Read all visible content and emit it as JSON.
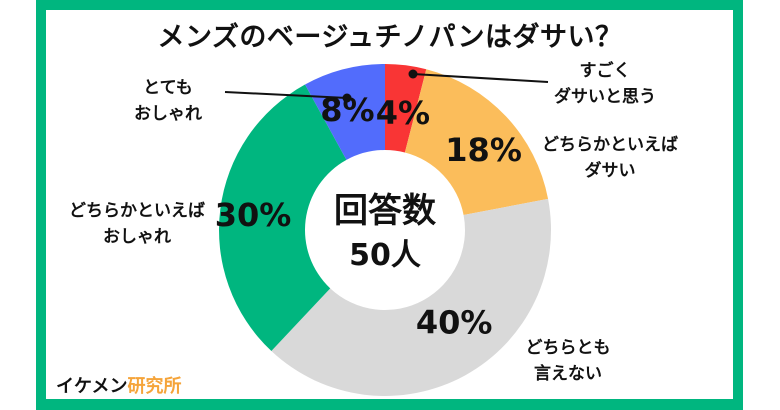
{
  "title": "メンズのベージュチノパンはダサい？",
  "center": {
    "line1": "回答数",
    "line2": "50人"
  },
  "brand": {
    "main": "イケメン",
    "accent": "研究所"
  },
  "colors": {
    "frame": "#00b67f",
    "red": "#f93535",
    "orange": "#fbbd5b",
    "gray": "#d9d9d9",
    "green": "#00b67f",
    "blue": "#526cfc",
    "brand_accent": "#f5a43a"
  },
  "labels": {
    "very_dasai": [
      "すごく",
      "ダサいと思う"
    ],
    "somewhat_dasai": [
      "どちらかといえば",
      "ダサい"
    ],
    "neither": [
      "どちらとも",
      "言えない"
    ],
    "somewhat_stylish": [
      "どちらかといえば",
      "おしゃれ"
    ],
    "very_stylish": [
      "とても",
      "おしゃれ"
    ]
  },
  "chart_data": {
    "type": "pie",
    "title": "メンズのベージュチノパンはダサい？",
    "subtitle": "回答数50人",
    "donut": true,
    "categories": [
      "すごくダサいと思う",
      "どちらかといえばダサい",
      "どちらとも言えない",
      "どちらかといえばおしゃれ",
      "とてもおしゃれ"
    ],
    "values": [
      4,
      18,
      40,
      30,
      8
    ],
    "value_labels": [
      "4%",
      "18%",
      "40%",
      "30%",
      "8%"
    ],
    "colors": [
      "#f93535",
      "#fbbd5b",
      "#d9d9d9",
      "#00b67f",
      "#526cfc"
    ],
    "start_angle": "12 o'clock, clockwise",
    "legend": "external callout labels"
  }
}
